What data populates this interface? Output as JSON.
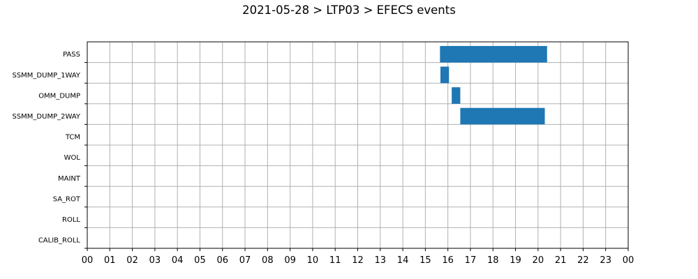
{
  "chart_data": {
    "type": "gantt",
    "title": "2021-05-28 > LTP03 > EFECS events",
    "xlabel": "",
    "ylabel": "",
    "x_ticks": [
      "00",
      "01",
      "02",
      "03",
      "04",
      "05",
      "06",
      "07",
      "08",
      "09",
      "10",
      "11",
      "12",
      "13",
      "14",
      "15",
      "16",
      "17",
      "18",
      "19",
      "20",
      "21",
      "22",
      "23",
      "00"
    ],
    "xlim_hours": [
      0,
      24
    ],
    "grid": true,
    "bar_color": "#1f77b4",
    "categories": [
      "PASS",
      "SSMM_DUMP_1WAY",
      "OMM_DUMP",
      "SSMM_DUMP_2WAY",
      "TCM",
      "WOL",
      "MAINT",
      "SA_ROT",
      "ROLL",
      "CALIB_ROLL"
    ],
    "events": [
      {
        "category": "PASS",
        "start_hour": 15.65,
        "end_hour": 20.4
      },
      {
        "category": "SSMM_DUMP_1WAY",
        "start_hour": 15.67,
        "end_hour": 16.05
      },
      {
        "category": "OMM_DUMP",
        "start_hour": 16.17,
        "end_hour": 16.55
      },
      {
        "category": "SSMM_DUMP_2WAY",
        "start_hour": 16.55,
        "end_hour": 20.3
      }
    ]
  }
}
